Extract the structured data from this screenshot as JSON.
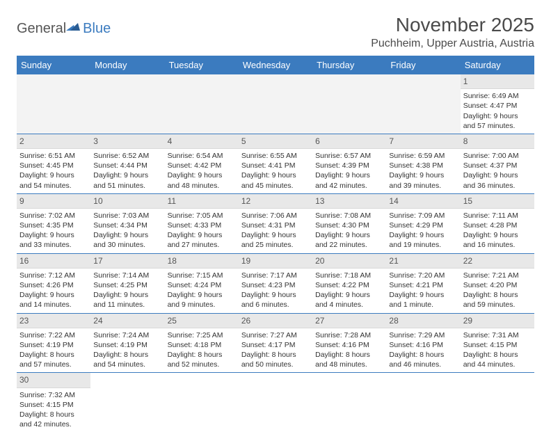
{
  "brand": {
    "part1": "General",
    "part2": "Blue"
  },
  "title": "November 2025",
  "location": "Puchheim, Upper Austria, Austria",
  "colors": {
    "header_bg": "#3b7bbf",
    "header_fg": "#ffffff",
    "daynum_bg": "#e8e8e8",
    "row_border": "#3b7bbf"
  },
  "weekdays": [
    "Sunday",
    "Monday",
    "Tuesday",
    "Wednesday",
    "Thursday",
    "Friday",
    "Saturday"
  ],
  "weeks": [
    [
      null,
      null,
      null,
      null,
      null,
      null,
      {
        "n": "1",
        "sr": "Sunrise: 6:49 AM",
        "ss": "Sunset: 4:47 PM",
        "dl": "Daylight: 9 hours and 57 minutes."
      }
    ],
    [
      {
        "n": "2",
        "sr": "Sunrise: 6:51 AM",
        "ss": "Sunset: 4:45 PM",
        "dl": "Daylight: 9 hours and 54 minutes."
      },
      {
        "n": "3",
        "sr": "Sunrise: 6:52 AM",
        "ss": "Sunset: 4:44 PM",
        "dl": "Daylight: 9 hours and 51 minutes."
      },
      {
        "n": "4",
        "sr": "Sunrise: 6:54 AM",
        "ss": "Sunset: 4:42 PM",
        "dl": "Daylight: 9 hours and 48 minutes."
      },
      {
        "n": "5",
        "sr": "Sunrise: 6:55 AM",
        "ss": "Sunset: 4:41 PM",
        "dl": "Daylight: 9 hours and 45 minutes."
      },
      {
        "n": "6",
        "sr": "Sunrise: 6:57 AM",
        "ss": "Sunset: 4:39 PM",
        "dl": "Daylight: 9 hours and 42 minutes."
      },
      {
        "n": "7",
        "sr": "Sunrise: 6:59 AM",
        "ss": "Sunset: 4:38 PM",
        "dl": "Daylight: 9 hours and 39 minutes."
      },
      {
        "n": "8",
        "sr": "Sunrise: 7:00 AM",
        "ss": "Sunset: 4:37 PM",
        "dl": "Daylight: 9 hours and 36 minutes."
      }
    ],
    [
      {
        "n": "9",
        "sr": "Sunrise: 7:02 AM",
        "ss": "Sunset: 4:35 PM",
        "dl": "Daylight: 9 hours and 33 minutes."
      },
      {
        "n": "10",
        "sr": "Sunrise: 7:03 AM",
        "ss": "Sunset: 4:34 PM",
        "dl": "Daylight: 9 hours and 30 minutes."
      },
      {
        "n": "11",
        "sr": "Sunrise: 7:05 AM",
        "ss": "Sunset: 4:33 PM",
        "dl": "Daylight: 9 hours and 27 minutes."
      },
      {
        "n": "12",
        "sr": "Sunrise: 7:06 AM",
        "ss": "Sunset: 4:31 PM",
        "dl": "Daylight: 9 hours and 25 minutes."
      },
      {
        "n": "13",
        "sr": "Sunrise: 7:08 AM",
        "ss": "Sunset: 4:30 PM",
        "dl": "Daylight: 9 hours and 22 minutes."
      },
      {
        "n": "14",
        "sr": "Sunrise: 7:09 AM",
        "ss": "Sunset: 4:29 PM",
        "dl": "Daylight: 9 hours and 19 minutes."
      },
      {
        "n": "15",
        "sr": "Sunrise: 7:11 AM",
        "ss": "Sunset: 4:28 PM",
        "dl": "Daylight: 9 hours and 16 minutes."
      }
    ],
    [
      {
        "n": "16",
        "sr": "Sunrise: 7:12 AM",
        "ss": "Sunset: 4:26 PM",
        "dl": "Daylight: 9 hours and 14 minutes."
      },
      {
        "n": "17",
        "sr": "Sunrise: 7:14 AM",
        "ss": "Sunset: 4:25 PM",
        "dl": "Daylight: 9 hours and 11 minutes."
      },
      {
        "n": "18",
        "sr": "Sunrise: 7:15 AM",
        "ss": "Sunset: 4:24 PM",
        "dl": "Daylight: 9 hours and 9 minutes."
      },
      {
        "n": "19",
        "sr": "Sunrise: 7:17 AM",
        "ss": "Sunset: 4:23 PM",
        "dl": "Daylight: 9 hours and 6 minutes."
      },
      {
        "n": "20",
        "sr": "Sunrise: 7:18 AM",
        "ss": "Sunset: 4:22 PM",
        "dl": "Daylight: 9 hours and 4 minutes."
      },
      {
        "n": "21",
        "sr": "Sunrise: 7:20 AM",
        "ss": "Sunset: 4:21 PM",
        "dl": "Daylight: 9 hours and 1 minute."
      },
      {
        "n": "22",
        "sr": "Sunrise: 7:21 AM",
        "ss": "Sunset: 4:20 PM",
        "dl": "Daylight: 8 hours and 59 minutes."
      }
    ],
    [
      {
        "n": "23",
        "sr": "Sunrise: 7:22 AM",
        "ss": "Sunset: 4:19 PM",
        "dl": "Daylight: 8 hours and 57 minutes."
      },
      {
        "n": "24",
        "sr": "Sunrise: 7:24 AM",
        "ss": "Sunset: 4:19 PM",
        "dl": "Daylight: 8 hours and 54 minutes."
      },
      {
        "n": "25",
        "sr": "Sunrise: 7:25 AM",
        "ss": "Sunset: 4:18 PM",
        "dl": "Daylight: 8 hours and 52 minutes."
      },
      {
        "n": "26",
        "sr": "Sunrise: 7:27 AM",
        "ss": "Sunset: 4:17 PM",
        "dl": "Daylight: 8 hours and 50 minutes."
      },
      {
        "n": "27",
        "sr": "Sunrise: 7:28 AM",
        "ss": "Sunset: 4:16 PM",
        "dl": "Daylight: 8 hours and 48 minutes."
      },
      {
        "n": "28",
        "sr": "Sunrise: 7:29 AM",
        "ss": "Sunset: 4:16 PM",
        "dl": "Daylight: 8 hours and 46 minutes."
      },
      {
        "n": "29",
        "sr": "Sunrise: 7:31 AM",
        "ss": "Sunset: 4:15 PM",
        "dl": "Daylight: 8 hours and 44 minutes."
      }
    ],
    [
      {
        "n": "30",
        "sr": "Sunrise: 7:32 AM",
        "ss": "Sunset: 4:15 PM",
        "dl": "Daylight: 8 hours and 42 minutes."
      },
      null,
      null,
      null,
      null,
      null,
      null
    ]
  ]
}
